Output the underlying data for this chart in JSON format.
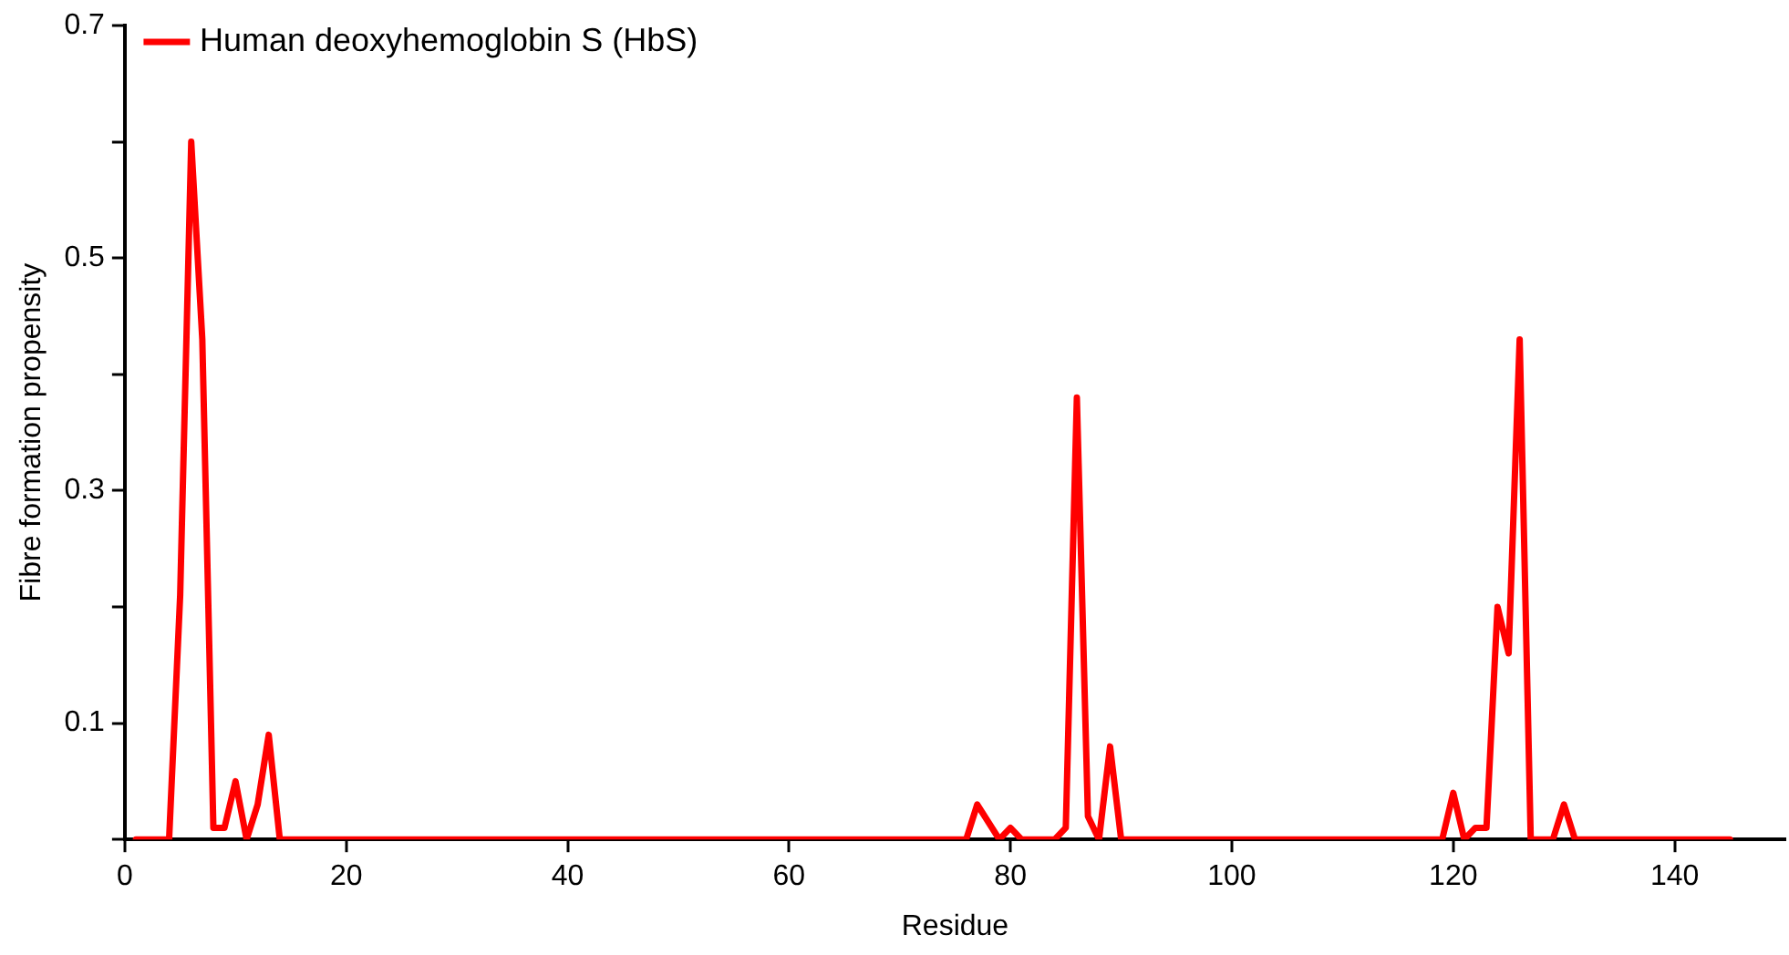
{
  "chart_data": {
    "type": "line",
    "xlabel": "Residue",
    "ylabel": "Fibre formation propensity",
    "x": [
      1,
      4,
      5,
      6,
      7,
      8,
      9,
      10,
      11,
      12,
      13,
      14,
      76,
      77,
      79,
      80,
      81,
      84,
      85,
      86,
      87,
      88,
      89,
      90,
      119,
      120,
      121,
      122,
      123,
      124,
      125,
      126,
      127,
      129,
      130,
      131,
      145
    ],
    "series": [
      {
        "name": "Human deoxyhemoglobin S (HbS)",
        "color": "#ff0000",
        "values": [
          0,
          0,
          0.21,
          0.6,
          0.43,
          0.01,
          0.01,
          0.05,
          0,
          0.03,
          0.09,
          0,
          0,
          0.03,
          0,
          0.01,
          0,
          0,
          0.01,
          0.38,
          0.02,
          0,
          0.08,
          0,
          0,
          0.04,
          0,
          0.01,
          0.01,
          0.2,
          0.16,
          0.43,
          0,
          0,
          0.03,
          0,
          0
        ]
      }
    ],
    "xlim": [
      0,
      150
    ],
    "xticks": [
      0,
      20,
      40,
      60,
      80,
      100,
      120,
      140
    ],
    "ylim": [
      0,
      0.7
    ],
    "yticks": [
      {
        "value": 0,
        "label": null
      },
      0.1,
      {
        "value": 0.2,
        "label": null
      },
      0.3,
      {
        "value": 0.4,
        "label": null
      },
      0.5,
      {
        "value": 0.6,
        "label": null
      },
      0.7
    ],
    "grid": false,
    "legend": "top left",
    "marker": "none",
    "line_style": "solid"
  }
}
